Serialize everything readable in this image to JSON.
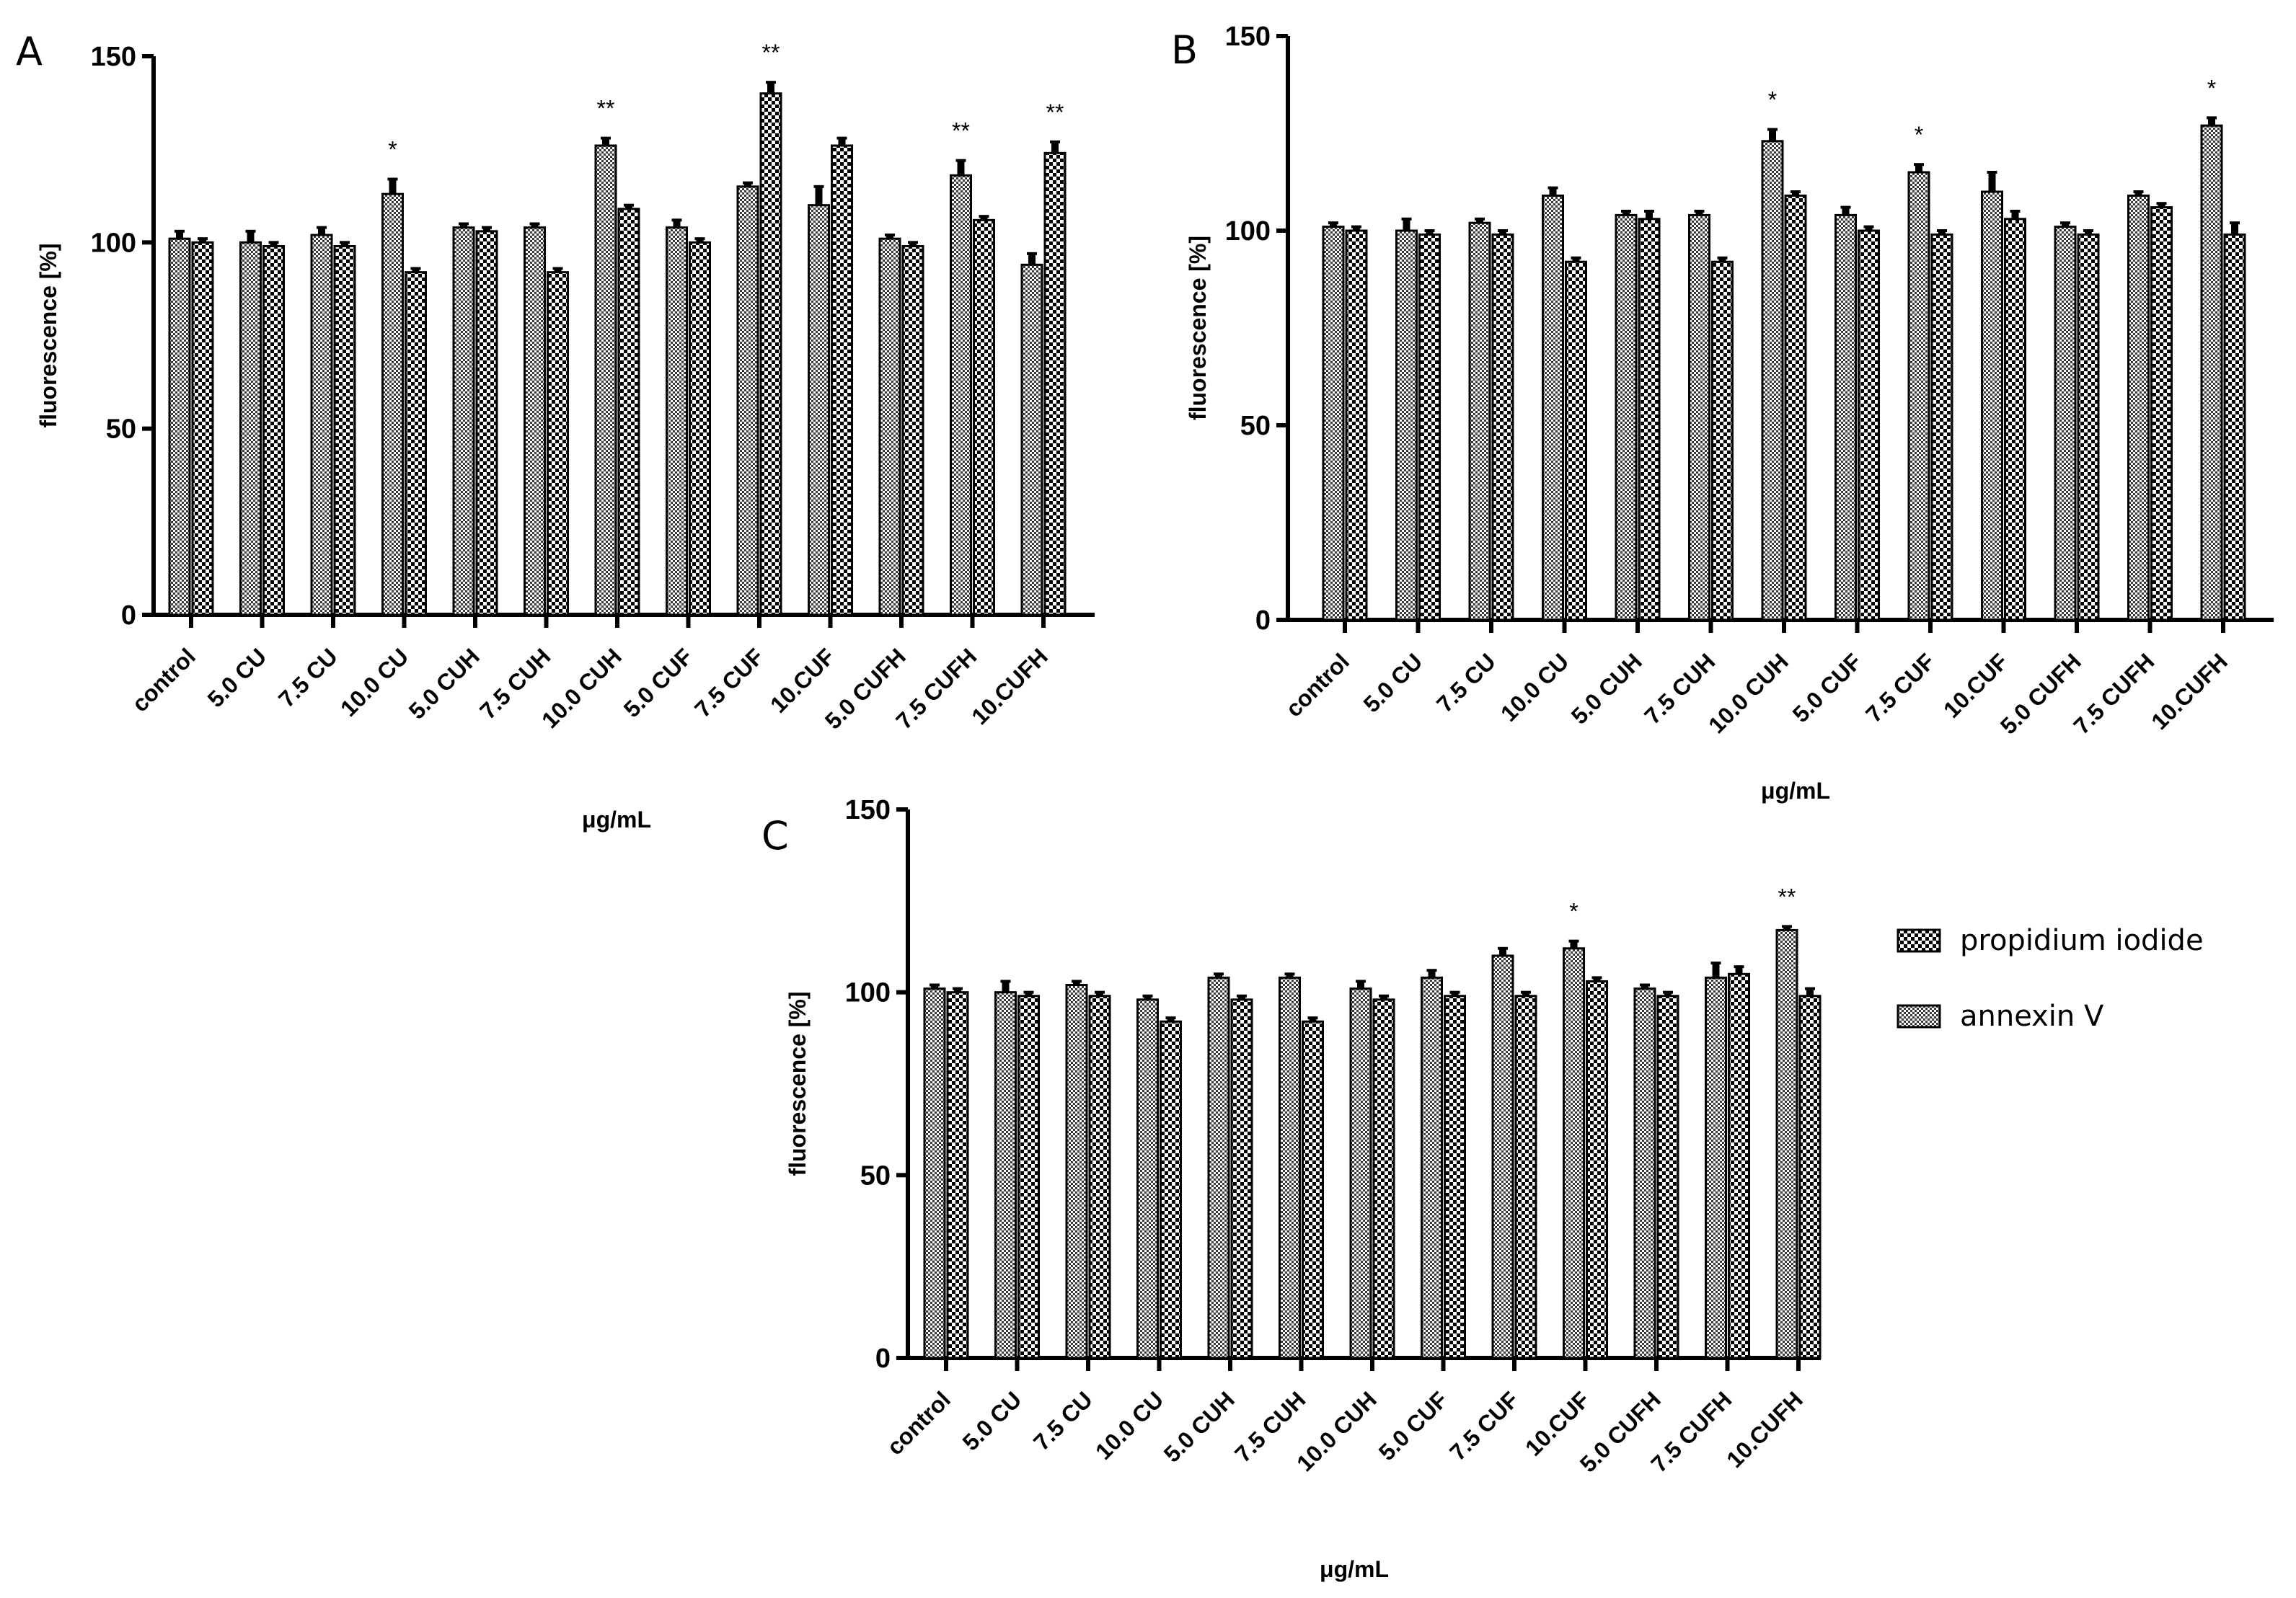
{
  "chart_data": [
    {
      "type": "bar",
      "panel_label": "A",
      "title": "",
      "xlabel": "μg/mL",
      "ylabel": "fluorescence [%]",
      "ylim": [
        0,
        150
      ],
      "yticks": [
        "0",
        "50",
        "100",
        "150"
      ],
      "categories": [
        "control",
        "5.0 CU",
        "7.5 CU",
        "10.0 CU",
        "5.0 CUH",
        "7.5 CUH",
        "10.0 CUH",
        "5.0 CUF",
        "7.5 CUF",
        "10.CUF",
        "5.0 CUFH",
        "7.5 CUFH",
        "10.CUFH"
      ],
      "series": [
        {
          "name": "annexin V",
          "values": [
            101,
            100,
            102,
            113,
            104,
            104,
            126,
            104,
            115,
            110,
            101,
            118,
            94
          ],
          "errors": [
            2,
            3,
            2,
            4,
            1,
            1,
            2,
            2,
            1,
            5,
            1,
            4,
            3
          ]
        },
        {
          "name": "propidium iodide",
          "values": [
            100,
            99,
            99,
            92,
            103,
            92,
            109,
            100,
            140,
            126,
            99,
            106,
            124
          ],
          "errors": [
            1,
            1,
            1,
            1,
            1,
            1,
            1,
            1,
            3,
            2,
            1,
            1,
            3
          ]
        }
      ],
      "annotations": [
        {
          "category": "10.0 CU",
          "series": "annexin V",
          "text": "*"
        },
        {
          "category": "10.0 CUH",
          "series": "annexin V",
          "text": "**"
        },
        {
          "category": "7.5 CUF",
          "series": "propidium iodide",
          "text": "**"
        },
        {
          "category": "7.5 CUFH",
          "series": "annexin V",
          "text": "**"
        },
        {
          "category": "10.CUFH",
          "series": "propidium iodide",
          "text": "**"
        }
      ]
    },
    {
      "type": "bar",
      "panel_label": "B",
      "title": "",
      "xlabel": "μg/mL",
      "ylabel": "fluorescence [%]",
      "ylim": [
        0,
        150
      ],
      "yticks": [
        "0",
        "50",
        "100",
        "150"
      ],
      "categories": [
        "control",
        "5.0 CU",
        "7.5 CU",
        "10.0 CU",
        "5.0 CUH",
        "7.5 CUH",
        "10.0 CUH",
        "5.0 CUF",
        "7.5 CUF",
        "10.CUF",
        "5.0 CUFH",
        "7.5 CUFH",
        "10.CUFH"
      ],
      "series": [
        {
          "name": "annexin V",
          "values": [
            101,
            100,
            102,
            109,
            104,
            104,
            123,
            104,
            115,
            110,
            101,
            109,
            127
          ],
          "errors": [
            1,
            3,
            1,
            2,
            1,
            1,
            3,
            2,
            2,
            5,
            1,
            1,
            2
          ]
        },
        {
          "name": "propidium iodide",
          "values": [
            100,
            99,
            99,
            92,
            103,
            92,
            109,
            100,
            99,
            103,
            99,
            106,
            99
          ],
          "errors": [
            1,
            1,
            1,
            1,
            2,
            1,
            1,
            1,
            1,
            2,
            1,
            1,
            3
          ]
        }
      ],
      "annotations": [
        {
          "category": "10.0 CUH",
          "series": "annexin V",
          "text": "*"
        },
        {
          "category": "7.5 CUF",
          "series": "annexin V",
          "text": "*"
        },
        {
          "category": "10.CUFH",
          "series": "annexin V",
          "text": "*"
        }
      ]
    },
    {
      "type": "bar",
      "panel_label": "C",
      "title": "",
      "xlabel": "μg/mL",
      "ylabel": "fluorescence [%]",
      "ylim": [
        0,
        150
      ],
      "yticks": [
        "0",
        "50",
        "100",
        "150"
      ],
      "categories": [
        "control",
        "5.0 CU",
        "7.5 CU",
        "10.0 CU",
        "5.0 CUH",
        "7.5 CUH",
        "10.0 CUH",
        "5.0 CUF",
        "7.5 CUF",
        "10.CUF",
        "5.0 CUFH",
        "7.5 CUFH",
        "10.CUFH"
      ],
      "series": [
        {
          "name": "annexin V",
          "values": [
            101,
            100,
            102,
            98,
            104,
            104,
            101,
            104,
            110,
            112,
            101,
            104,
            117
          ],
          "errors": [
            1,
            3,
            1,
            1,
            1,
            1,
            2,
            2,
            2,
            2,
            1,
            4,
            1
          ]
        },
        {
          "name": "propidium iodide",
          "values": [
            100,
            99,
            99,
            92,
            98,
            92,
            98,
            99,
            99,
            103,
            99,
            105,
            99
          ],
          "errors": [
            1,
            1,
            1,
            1,
            1,
            1,
            1,
            1,
            1,
            1,
            1,
            2,
            2
          ]
        }
      ],
      "annotations": [
        {
          "category": "10.CUF",
          "series": "annexin V",
          "text": "*"
        },
        {
          "category": "10.CUFH",
          "series": "annexin V",
          "text": "**"
        }
      ]
    }
  ],
  "legend": {
    "items": [
      {
        "name": "propidium iodide",
        "pattern": "checker"
      },
      {
        "name": "annexin V",
        "pattern": "fine-hatch"
      }
    ]
  }
}
